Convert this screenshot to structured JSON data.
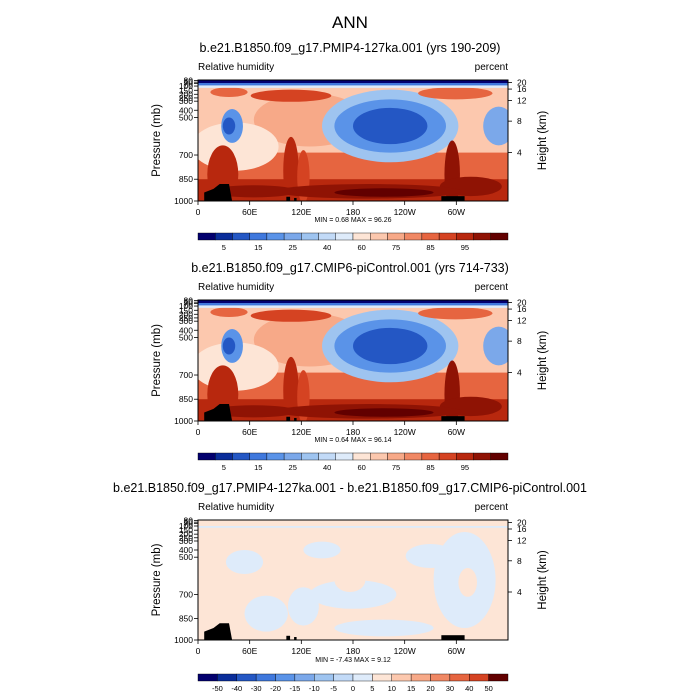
{
  "figure": {
    "title": "ANN"
  },
  "chart_data": [
    {
      "type": "heatmap",
      "title": "b.e21.B1850.f09_g17.PMIP4-127ka.001 (yrs 190-209)",
      "left_label": "Relative humidity",
      "right_label": "percent",
      "ylabel": "Pressure (mb)",
      "ylabel_right": "Height (km)",
      "x_ticks": [
        "0",
        "60E",
        "120E",
        "180",
        "120W",
        "60W"
      ],
      "y_ticks": [
        "30",
        "50",
        "70",
        "100",
        "150",
        "200",
        "250",
        "300",
        "400",
        "500",
        "700",
        "850",
        "1000"
      ],
      "height_ticks": [
        "20",
        "16",
        "12",
        "8",
        "4"
      ],
      "stats": "MIN =   0.68  MAX =  96.26",
      "colorbar_labels": [
        "5",
        "15",
        "25",
        "40",
        "60",
        "75",
        "85",
        "95"
      ],
      "colors": [
        "#03006e",
        "#0a2d9a",
        "#2457c4",
        "#3f78dd",
        "#5a93e8",
        "#7ba8ea",
        "#9ec4f0",
        "#c2daf7",
        "#deebfa",
        "#fde5d6",
        "#fcc8ae",
        "#f7a988",
        "#f08864",
        "#e66540",
        "#d54322",
        "#b8280e",
        "#8f1304",
        "#620000"
      ]
    },
    {
      "type": "heatmap",
      "title": "b.e21.B1850.f09_g17.CMIP6-piControl.001 (yrs 714-733)",
      "left_label": "Relative humidity",
      "right_label": "percent",
      "ylabel": "Pressure (mb)",
      "ylabel_right": "Height (km)",
      "x_ticks": [
        "0",
        "60E",
        "120E",
        "180",
        "120W",
        "60W"
      ],
      "y_ticks": [
        "30",
        "50",
        "70",
        "100",
        "150",
        "200",
        "250",
        "300",
        "400",
        "500",
        "700",
        "850",
        "1000"
      ],
      "height_ticks": [
        "20",
        "16",
        "12",
        "8",
        "4"
      ],
      "stats": "MIN =   0.64  MAX =  96.14",
      "colorbar_labels": [
        "5",
        "15",
        "25",
        "40",
        "60",
        "75",
        "85",
        "95"
      ],
      "colors": [
        "#03006e",
        "#0a2d9a",
        "#2457c4",
        "#3f78dd",
        "#5a93e8",
        "#7ba8ea",
        "#9ec4f0",
        "#c2daf7",
        "#deebfa",
        "#fde5d6",
        "#fcc8ae",
        "#f7a988",
        "#f08864",
        "#e66540",
        "#d54322",
        "#b8280e",
        "#8f1304",
        "#620000"
      ]
    },
    {
      "type": "heatmap",
      "title": "b.e21.B1850.f09_g17.PMIP4-127ka.001 - b.e21.B1850.f09_g17.CMIP6-piControl.001",
      "left_label": "Relative humidity",
      "right_label": "percent",
      "ylabel": "Pressure (mb)",
      "ylabel_right": "Height (km)",
      "x_ticks": [
        "0",
        "60E",
        "120E",
        "180",
        "120W",
        "60W"
      ],
      "y_ticks": [
        "30",
        "50",
        "70",
        "100",
        "150",
        "200",
        "250",
        "300",
        "400",
        "500",
        "700",
        "850",
        "1000"
      ],
      "height_ticks": [
        "20",
        "16",
        "12",
        "8",
        "4"
      ],
      "stats": "MIN =  -7.43  MAX =   9.12",
      "colorbar_labels": [
        "-50",
        "-40",
        "-30",
        "-20",
        "-15",
        "-10",
        "-5",
        "0",
        "5",
        "10",
        "15",
        "20",
        "30",
        "40",
        "50"
      ],
      "colors": [
        "#03006e",
        "#0a2d9a",
        "#2457c4",
        "#3f78dd",
        "#5a93e8",
        "#7ba8ea",
        "#9ec4f0",
        "#c2daf7",
        "#deebfa",
        "#fde5d6",
        "#fcc8ae",
        "#f7a988",
        "#f08864",
        "#e66540",
        "#d54322",
        "#620000"
      ]
    }
  ]
}
